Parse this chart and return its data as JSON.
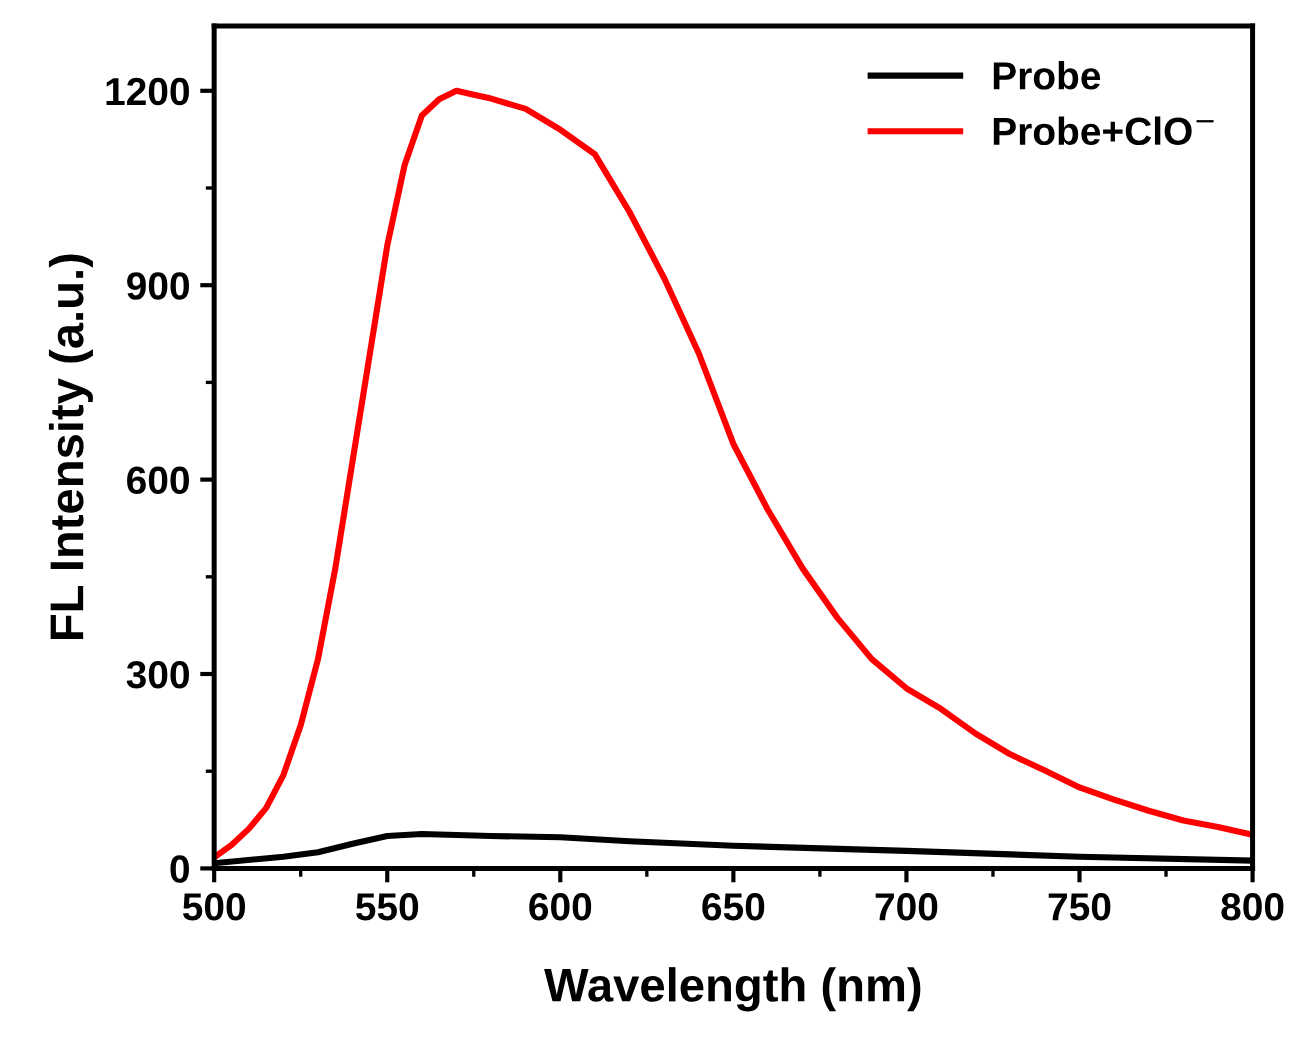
{
  "chart_data": {
    "type": "line",
    "xlabel": "Wavelength (nm)",
    "ylabel": "FL Intensity (a.u.)",
    "xlim": [
      500,
      800
    ],
    "ylim": [
      0,
      1300
    ],
    "xticks": [
      500,
      550,
      600,
      650,
      700,
      750,
      800
    ],
    "yticks": [
      0,
      300,
      600,
      900,
      1200
    ],
    "legend": "top right",
    "grid": false,
    "line_style": "solid",
    "marker": "none",
    "series": [
      {
        "name": "Probe",
        "color": "#000000",
        "x": [
          500,
          520,
          530,
          540,
          550,
          560,
          580,
          600,
          620,
          650,
          700,
          750,
          800
        ],
        "values": [
          8,
          18,
          25,
          38,
          50,
          53,
          50,
          48,
          42,
          35,
          27,
          18,
          12
        ]
      },
      {
        "name": "Probe+ClO$^{−}$",
        "color": "#ff0000",
        "x": [
          500,
          505,
          510,
          515,
          520,
          525,
          530,
          535,
          540,
          545,
          550,
          555,
          560,
          565,
          570,
          575,
          580,
          590,
          600,
          610,
          620,
          630,
          640,
          650,
          660,
          670,
          680,
          690,
          700,
          710,
          720,
          730,
          740,
          750,
          760,
          770,
          780,
          790,
          800
        ],
        "values": [
          17,
          36,
          61,
          93,
          144,
          221,
          323,
          463,
          629,
          795,
          961,
          1085,
          1162,
          1187,
          1200,
          1194,
          1188,
          1172,
          1140,
          1102,
          1013,
          911,
          795,
          655,
          553,
          463,
          387,
          323,
          278,
          246,
          208,
          176,
          151,
          125,
          106,
          89,
          74,
          64,
          52
        ]
      }
    ]
  }
}
